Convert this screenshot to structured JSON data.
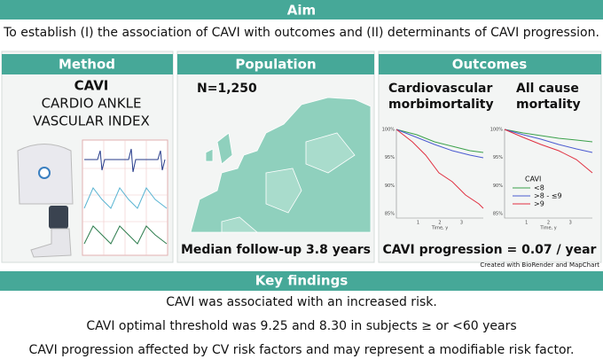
{
  "aim": {
    "title": "Aim",
    "text": "To establish (I) the association of CAVI with outcomes and (II) determinants of CAVI progression."
  },
  "method": {
    "title": "Method",
    "abbr": "CAVI",
    "full_lines": [
      "CARDIO ANKLE",
      "VASCULAR INDEX"
    ]
  },
  "population": {
    "title": "Population",
    "n": "N=1,250",
    "followup": "Median follow-up 3.8 years"
  },
  "outcomes": {
    "title": "Outcomes",
    "plots": [
      {
        "title_lines": [
          "Cardiovascular",
          "morbimortality"
        ],
        "y_labels": [
          "100%",
          "95%",
          "90%",
          "85%"
        ],
        "x_title": "Time, y",
        "x_labels": [
          "1",
          "2",
          "3"
        ]
      },
      {
        "title_lines": [
          "All cause",
          "mortality"
        ],
        "y_labels": [
          "100%",
          "95%",
          "90%",
          "85%"
        ],
        "x_title": "Time, y",
        "x_labels": [
          "1",
          "2",
          "3"
        ]
      }
    ],
    "legend": {
      "title": "CAVI",
      "items": [
        "<8",
        ">8 - ≤9",
        ">9"
      ]
    },
    "progression": "CAVI progression = 0.07 / year"
  },
  "credit": "Created with BioRender and MapChart",
  "key_findings": {
    "title": "Key findings",
    "items": [
      "CAVI was associated with an increased risk.",
      "CAVI optimal threshold was 9.25 and 8.30 in subjects ≥ or <60 years",
      "CAVI progression affected by CV risk factors and may represent a modifiable risk factor."
    ]
  }
}
